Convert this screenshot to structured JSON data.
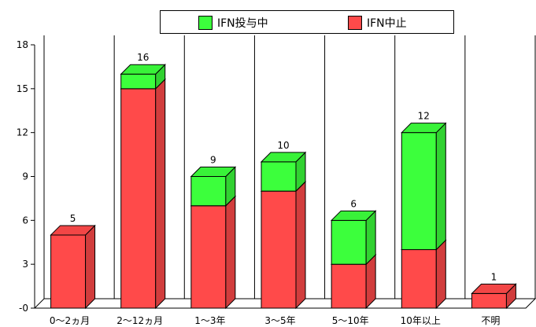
{
  "chart_data": {
    "type": "bar",
    "stacked": true,
    "three_d": true,
    "categories": [
      "0〜2ヵ月",
      "2〜12ヵ月",
      "1〜3年",
      "3〜5年",
      "5〜10年",
      "10年以上",
      "不明"
    ],
    "series": [
      {
        "name": "IFN中止",
        "color": "#ff4a4a",
        "values": [
          5,
          15,
          7,
          8,
          3,
          4,
          1
        ]
      },
      {
        "name": "IFN投与中",
        "color": "#3cff3c",
        "values": [
          0,
          1,
          2,
          2,
          3,
          8,
          0
        ]
      }
    ],
    "totals": [
      5,
      16,
      9,
      10,
      6,
      12,
      1
    ],
    "ylim": [
      0,
      18
    ],
    "yticks": [
      0,
      3,
      6,
      9,
      12,
      15,
      18
    ],
    "ytick_labels": [
      "0",
      "3",
      "6",
      "9",
      "12",
      "15",
      "18"
    ],
    "legend": {
      "placement": "top-center",
      "order": [
        "IFN投与中",
        "IFN中止"
      ]
    },
    "grid": "vertical category separators"
  }
}
